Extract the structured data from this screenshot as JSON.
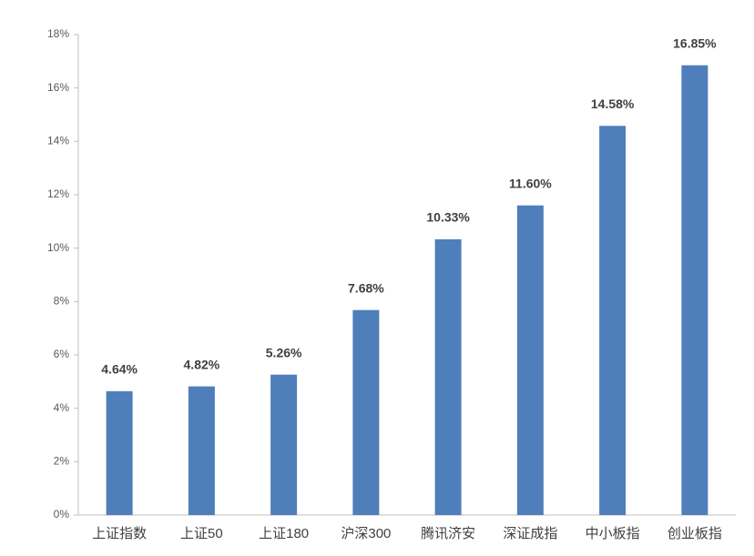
{
  "chart_data": {
    "type": "bar",
    "categories": [
      "上证指数",
      "上证50",
      "上证180",
      "沪深300",
      "腾讯济安",
      "深证成指",
      "中小板指",
      "创业板指"
    ],
    "values": [
      4.64,
      4.82,
      5.26,
      7.68,
      10.33,
      11.6,
      14.58,
      16.85
    ],
    "value_labels": [
      "4.64%",
      "4.82%",
      "5.26%",
      "7.68%",
      "10.33%",
      "11.60%",
      "14.58%",
      "16.85%"
    ],
    "color": "#4f7fbb",
    "ylim": [
      0,
      18
    ],
    "yticks": [
      {
        "value": 0,
        "label": "0%"
      },
      {
        "value": 2,
        "label": "2%"
      },
      {
        "value": 4,
        "label": "4%"
      },
      {
        "value": 6,
        "label": "6%"
      },
      {
        "value": 8,
        "label": "8%"
      },
      {
        "value": 10,
        "label": "10%"
      },
      {
        "value": 12,
        "label": "12%"
      },
      {
        "value": 14,
        "label": "14%"
      },
      {
        "value": 16,
        "label": "16%"
      },
      {
        "value": 18,
        "label": "18%"
      }
    ],
    "grid": false
  }
}
